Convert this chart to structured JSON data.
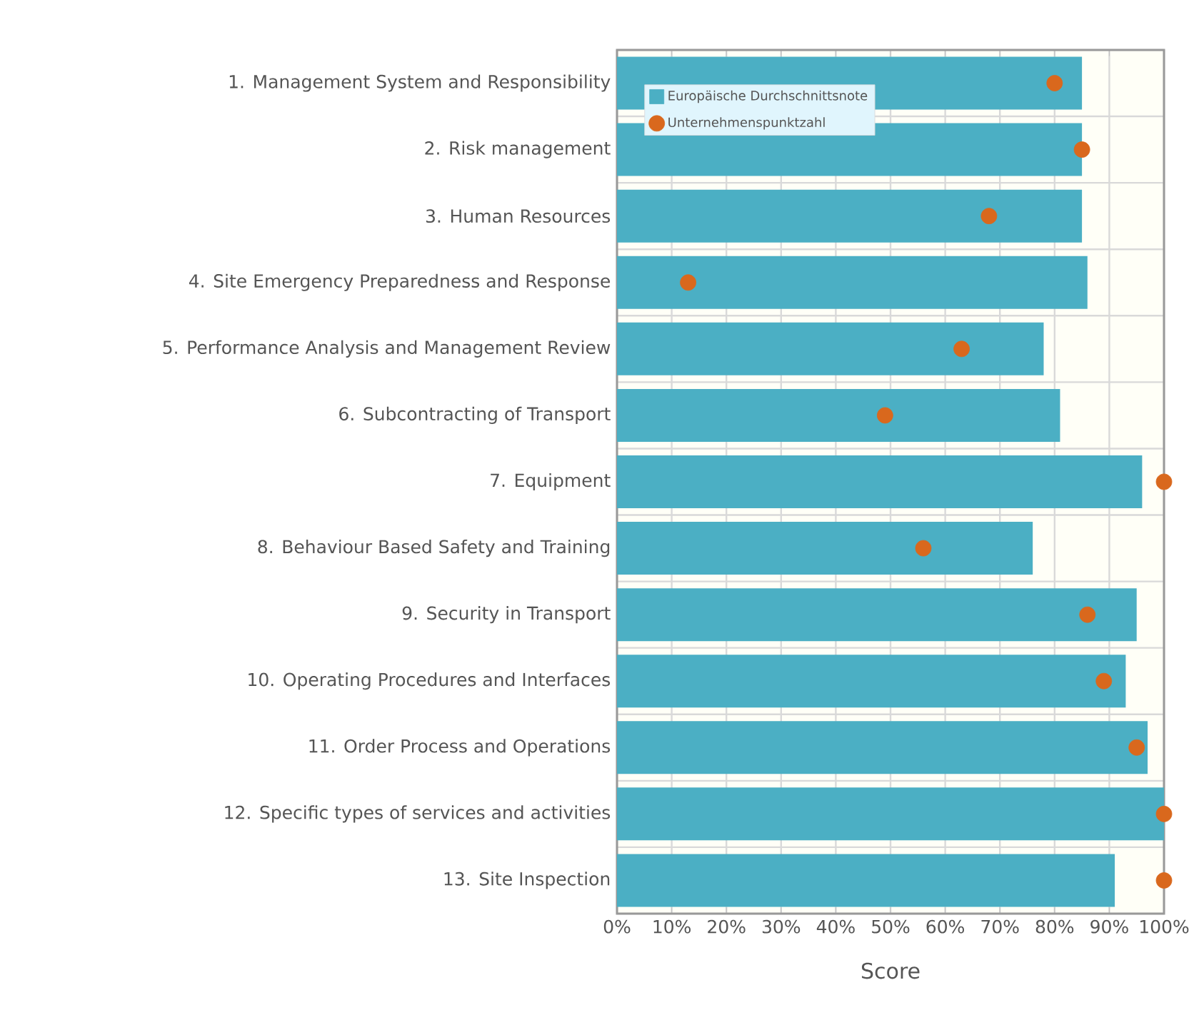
{
  "chart_data": {
    "type": "bar",
    "orientation": "horizontal",
    "xlabel": "Score",
    "categories": [
      "1. Management System and Responsibility",
      "2. Risk management",
      "3. Human Resources",
      "4. Site Emergency Preparedness and Response",
      "5. Performance Analysis and Management Review",
      "6. Subcontracting of Transport",
      "7. Equipment",
      "8. Behaviour Based Safety and Training",
      "9. Security in Transport",
      "10. Operating Procedures and Interfaces",
      "11. Order Process and Operations",
      "12. Specific types of services and activities",
      "13. Site Inspection"
    ],
    "series": [
      {
        "name": "Europäische Durchschnittsnote",
        "type": "bar",
        "color": "#4bafc4",
        "values": [
          85,
          85,
          85,
          86,
          78,
          81,
          96,
          76,
          95,
          93,
          97,
          100,
          91
        ]
      },
      {
        "name": "Unternehmenspunktzahl",
        "type": "scatter",
        "color": "#d9681d",
        "values": [
          80,
          85,
          68,
          13,
          63,
          49,
          100,
          56,
          86,
          89,
          95,
          100,
          100
        ]
      }
    ],
    "xlim": [
      0,
      100
    ],
    "xticks": [
      {
        "value": 0,
        "label": "0%"
      },
      {
        "value": 10,
        "label": "10%"
      },
      {
        "value": 20,
        "label": "20%"
      },
      {
        "value": 30,
        "label": "30%"
      },
      {
        "value": 40,
        "label": "40%"
      },
      {
        "value": 50,
        "label": "50%"
      },
      {
        "value": 60,
        "label": "60%"
      },
      {
        "value": 70,
        "label": "70%"
      },
      {
        "value": 80,
        "label": "80%"
      },
      {
        "value": 90,
        "label": "90%"
      },
      {
        "value": 100,
        "label": "100%"
      }
    ],
    "grid": true,
    "legend": "top left"
  }
}
